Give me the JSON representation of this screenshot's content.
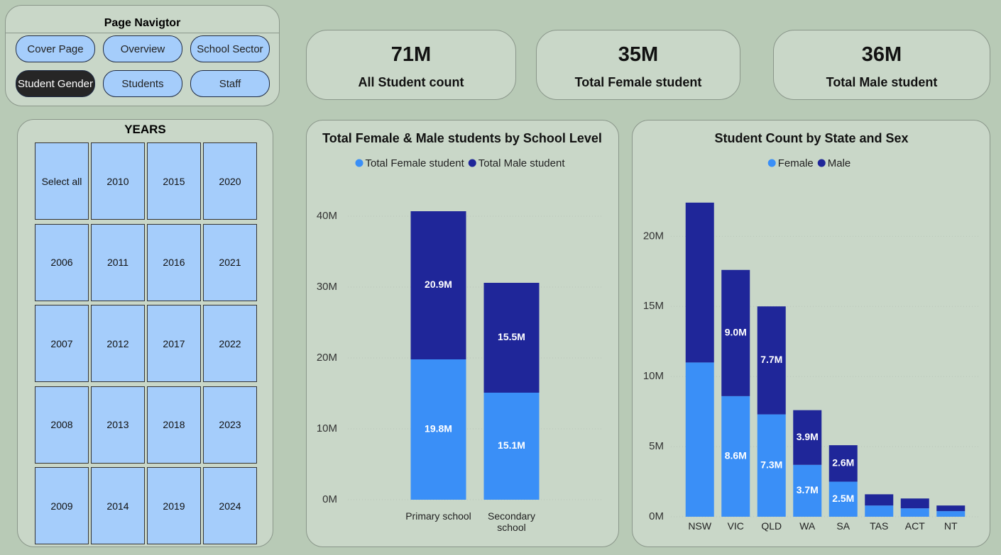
{
  "navigator": {
    "title": "Page Navigtor",
    "buttons": [
      {
        "label": "Cover Page",
        "active": false
      },
      {
        "label": "Overview",
        "active": false
      },
      {
        "label": "School Sector",
        "active": false
      },
      {
        "label": "Student Gender",
        "active": true
      },
      {
        "label": "Students",
        "active": false
      },
      {
        "label": "Staff",
        "active": false
      }
    ]
  },
  "years": {
    "title": "YEARS",
    "items": [
      "Select all",
      "2010",
      "2015",
      "2020",
      "2006",
      "2011",
      "2016",
      "2021",
      "2007",
      "2012",
      "2017",
      "2022",
      "2008",
      "2013",
      "2018",
      "2023",
      "2009",
      "2014",
      "2019",
      "2024"
    ]
  },
  "cards": [
    {
      "value": "71M",
      "label": "All Student count"
    },
    {
      "value": "35M",
      "label": "Total Female student"
    },
    {
      "value": "36M",
      "label": "Total Male student"
    }
  ],
  "chart_data": [
    {
      "type": "bar",
      "stacked": true,
      "title": "Total Female & Male students by School Level",
      "categories": [
        "Primary school",
        "Secondary school"
      ],
      "series": [
        {
          "name": "Total Female student",
          "color": "#3a8ff7",
          "values": [
            19.8,
            15.1
          ],
          "value_labels": [
            "19.8M",
            "15.1M"
          ]
        },
        {
          "name": "Total Male student",
          "color": "#1f2699",
          "values": [
            20.9,
            15.5
          ],
          "value_labels": [
            "20.9M",
            "15.5M"
          ]
        }
      ],
      "ylim": [
        0,
        45
      ],
      "yticks": [
        {
          "value": 0,
          "label": "0M"
        },
        {
          "value": 10,
          "label": "10M"
        },
        {
          "value": 20,
          "label": "20M"
        },
        {
          "value": 30,
          "label": "30M"
        },
        {
          "value": 40,
          "label": "40M"
        }
      ],
      "grid": true,
      "legend": "top"
    },
    {
      "type": "bar",
      "stacked": true,
      "title": "Student Count by State and Sex",
      "categories": [
        "NSW",
        "VIC",
        "QLD",
        "WA",
        "SA",
        "TAS",
        "ACT",
        "NT"
      ],
      "series": [
        {
          "name": "Female",
          "color": "#3a8ff7",
          "values": [
            11.0,
            8.6,
            7.3,
            3.7,
            2.5,
            0.8,
            0.6,
            0.4
          ],
          "value_labels": [
            null,
            "8.6M",
            "7.3M",
            "3.7M",
            "2.5M",
            null,
            null,
            null
          ]
        },
        {
          "name": "Male",
          "color": "#1f2699",
          "values": [
            11.4,
            9.0,
            7.7,
            3.9,
            2.6,
            0.8,
            0.7,
            0.4
          ],
          "value_labels": [
            null,
            "9.0M",
            "7.7M",
            "3.9M",
            "2.6M",
            null,
            null,
            null
          ]
        }
      ],
      "ylim": [
        0,
        23
      ],
      "yticks": [
        {
          "value": 0,
          "label": "0M"
        },
        {
          "value": 5,
          "label": "5M"
        },
        {
          "value": 10,
          "label": "10M"
        },
        {
          "value": 15,
          "label": "15M"
        },
        {
          "value": 20,
          "label": "20M"
        }
      ],
      "grid": true,
      "legend": "top"
    }
  ]
}
